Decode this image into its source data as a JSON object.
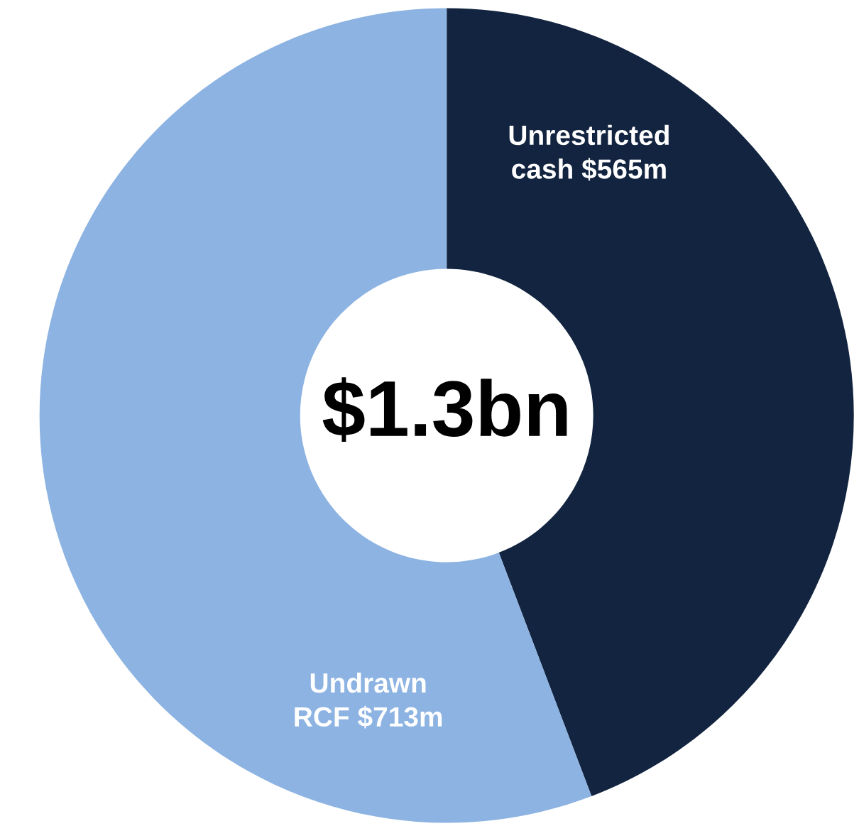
{
  "chart_data": {
    "type": "donut",
    "categories": [
      "Unrestricted cash",
      "Undrawn RCF"
    ],
    "values": [
      565,
      713
    ],
    "value_labels": [
      "$565m",
      "$713m"
    ],
    "colors": [
      "#12243f",
      "#8db3e2"
    ],
    "annotations": [
      "$1.3bn"
    ],
    "legend": false
  }
}
